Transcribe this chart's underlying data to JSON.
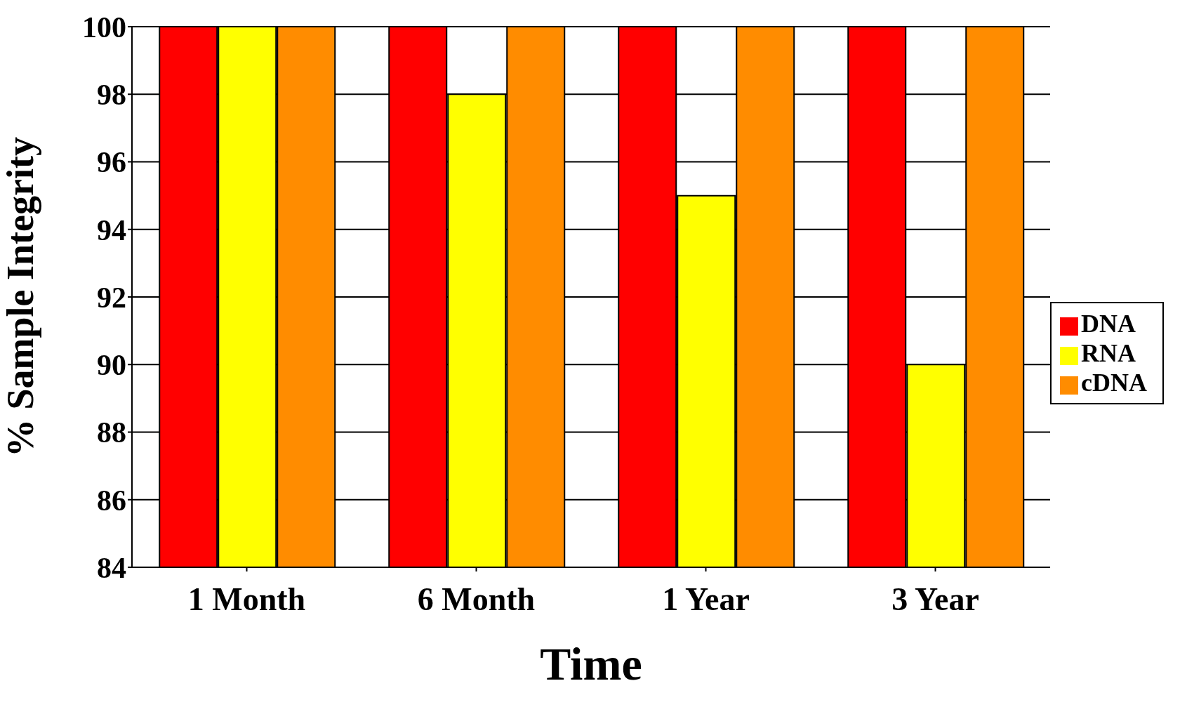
{
  "chart_data": {
    "type": "bar",
    "xlabel": "Time",
    "ylabel": "% Sample Integrity",
    "categories": [
      "1 Month",
      "6 Month",
      "1 Year",
      "3 Year"
    ],
    "series": [
      {
        "name": "DNA",
        "color": "#ff0000",
        "values": [
          100,
          100,
          100,
          100
        ]
      },
      {
        "name": "RNA",
        "color": "#ffff00",
        "values": [
          100,
          98,
          95,
          90
        ]
      },
      {
        "name": "cDNA",
        "color": "#ff8c00",
        "values": [
          100,
          100,
          100,
          100
        ]
      }
    ],
    "ylim": [
      84,
      100
    ],
    "yticks": [
      84,
      86,
      88,
      90,
      92,
      94,
      96,
      98,
      100
    ],
    "grid": "y",
    "legend": "right"
  }
}
